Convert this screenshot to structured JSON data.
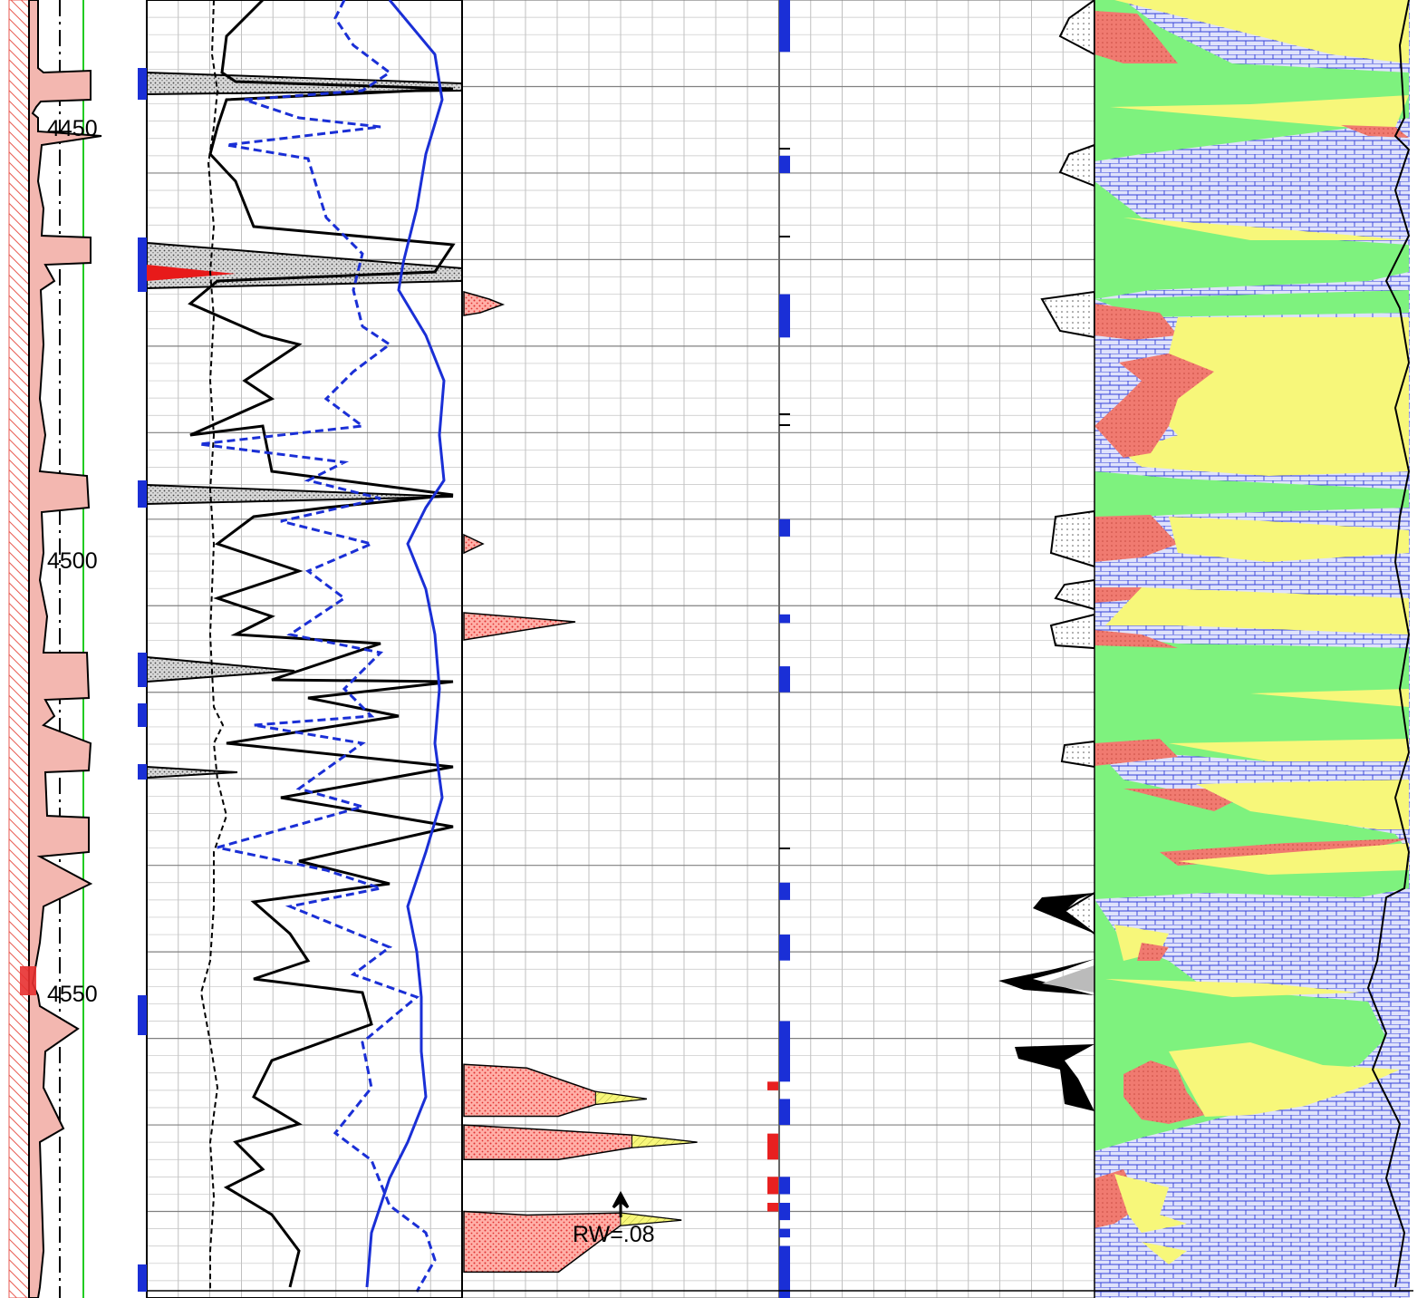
{
  "chart_data": {
    "type": "well-log",
    "depth_axis": {
      "range": [
        4420,
        4570
      ],
      "labels": [
        "4450",
        "4500",
        "4550"
      ],
      "ticks": [
        4450,
        4500,
        4550
      ]
    },
    "annotations": [
      {
        "text": "RW=.08",
        "depth": 4558
      }
    ],
    "colors": {
      "depth_track_hatch": "#e85a50",
      "sp_curve": "#000000",
      "shale_fill": "#f0a8a0",
      "porosity_black": "#000000",
      "porosity_blue": "#1a2fd6",
      "sand_fill": "#b0b0b0",
      "oil_red": "#e83030",
      "flag_blue": "#1a2fd6",
      "flag_red": "#e82020",
      "lith_green": "#7ef27e",
      "lith_yellow": "#f7f77a",
      "lith_pink": "#f07a70",
      "lith_limestone": "#3340d8",
      "grid": "#999999"
    },
    "pay_flags": [
      {
        "top": 4420,
        "bottom": 4426
      },
      {
        "top": 4438,
        "bottom": 4440
      },
      {
        "top": 4454,
        "bottom": 4459
      },
      {
        "top": 4480,
        "bottom": 4482
      },
      {
        "top": 4491,
        "bottom": 4492
      },
      {
        "top": 4497,
        "bottom": 4500
      },
      {
        "top": 4522,
        "bottom": 4524
      },
      {
        "top": 4528,
        "bottom": 4531
      },
      {
        "top": 4538,
        "bottom": 4545
      },
      {
        "top": 4547,
        "bottom": 4550
      },
      {
        "top": 4556,
        "bottom": 4558
      },
      {
        "top": 4559,
        "bottom": 4561
      },
      {
        "top": 4562,
        "bottom": 4563
      },
      {
        "top": 4564,
        "bottom": 4566
      },
      {
        "top": 4564,
        "bottom": 4570
      }
    ],
    "oil_flags": [
      {
        "top": 4545,
        "bottom": 4546
      },
      {
        "top": 4551,
        "bottom": 4554
      },
      {
        "top": 4556,
        "bottom": 4558
      },
      {
        "top": 4559,
        "bottom": 4560
      }
    ],
    "pay_zones": [
      {
        "top": 4543,
        "peak": 4547,
        "bottom": 4549,
        "reach": 0.58
      },
      {
        "top": 4550,
        "peak": 4552,
        "bottom": 4554,
        "reach": 0.74
      },
      {
        "top": 4560,
        "peak": 4561,
        "bottom": 4567,
        "reach": 0.69
      }
    ]
  }
}
